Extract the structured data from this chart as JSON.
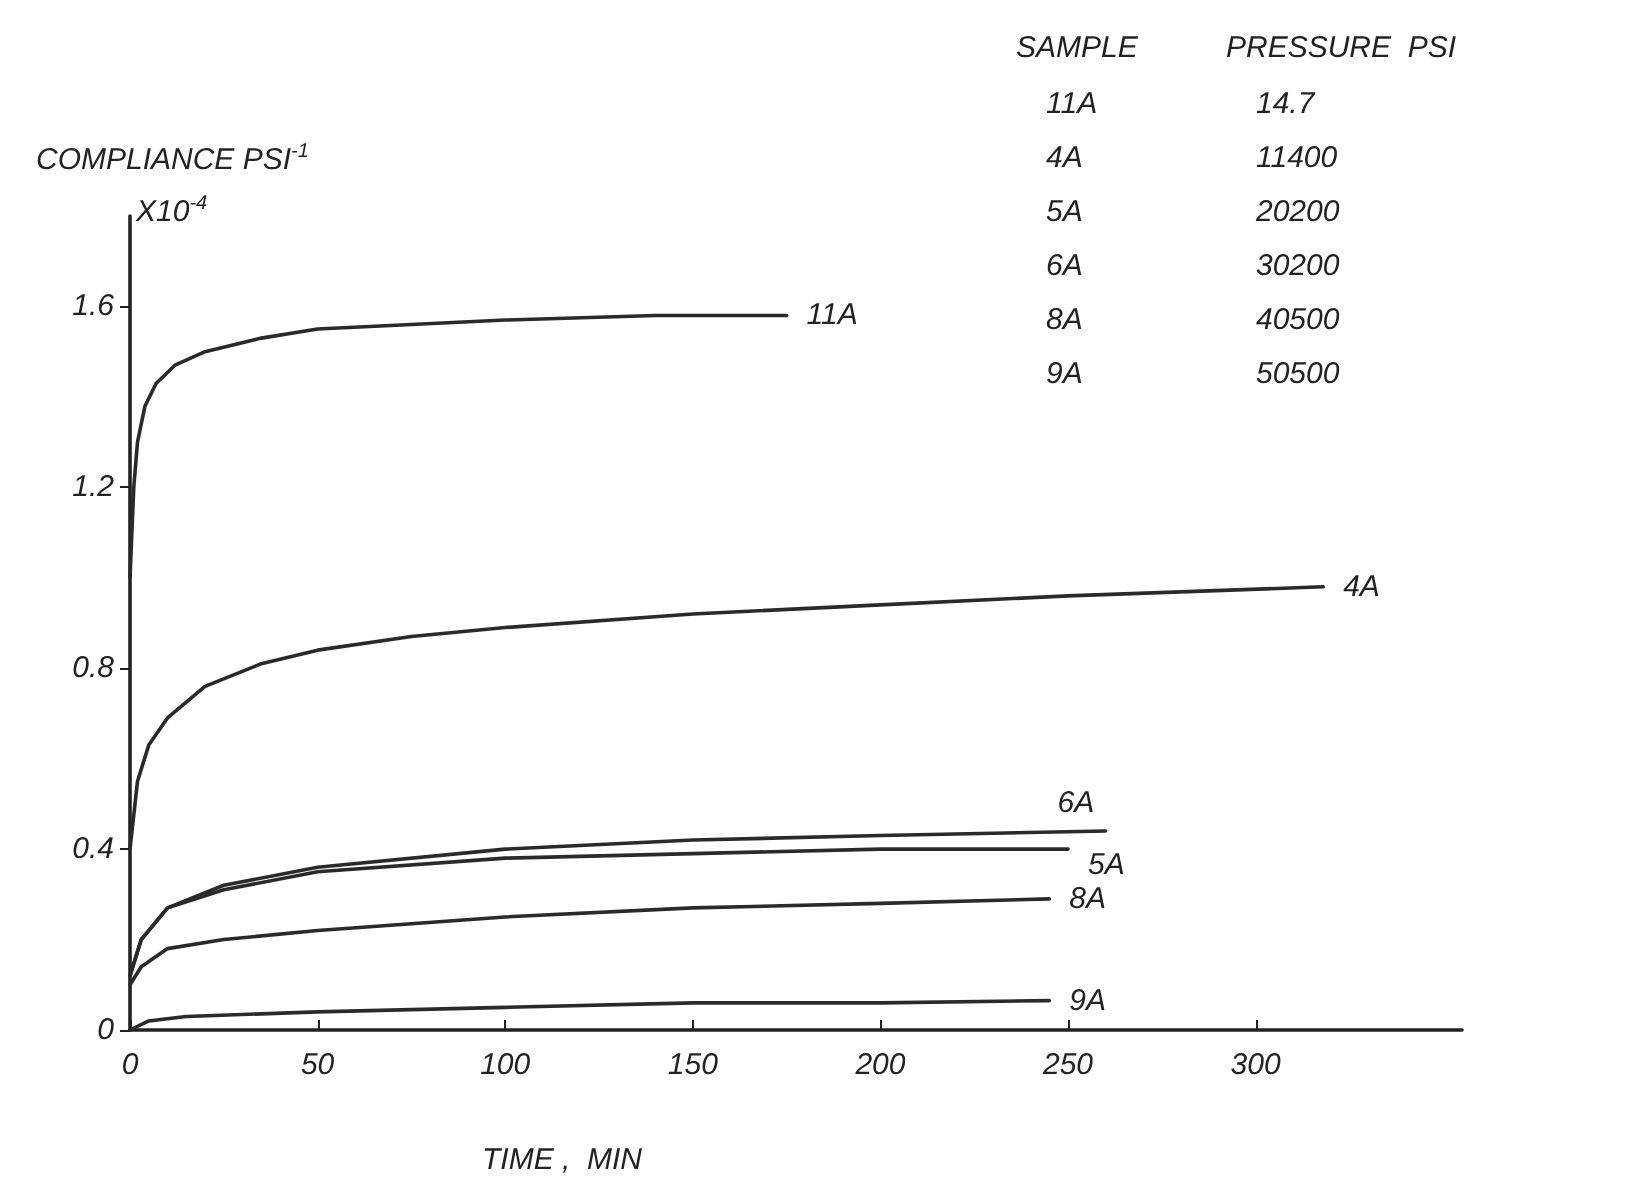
{
  "chart_data": {
    "type": "line",
    "ylabel": "COMPLIANCE PSI$^{-1}$",
    "xlabel": "TIME ,  MIN",
    "annotations": [
      "X10$^{-4}$",
      "SAMPLE",
      "PRESSURE  PSI",
      "11A",
      "14.7",
      "4A",
      "11400",
      "5A",
      "20200",
      "6A",
      "30200",
      "8A",
      "40500",
      "9A",
      "50500"
    ],
    "series": [
      {
        "name": "11A",
        "color": "#2a2a2a",
        "x": [
          0,
          1,
          2,
          4,
          7,
          12,
          20,
          35,
          50,
          75,
          100,
          140,
          175
        ],
        "values": [
          1.0,
          1.2,
          1.3,
          1.38,
          1.43,
          1.47,
          1.5,
          1.53,
          1.55,
          1.56,
          1.57,
          1.58,
          1.58
        ]
      },
      {
        "name": "4A",
        "color": "#2a2a2a",
        "x": [
          0,
          2,
          5,
          10,
          20,
          35,
          50,
          75,
          100,
          150,
          200,
          250,
          318
        ],
        "values": [
          0.4,
          0.55,
          0.63,
          0.69,
          0.76,
          0.81,
          0.84,
          0.87,
          0.89,
          0.92,
          0.94,
          0.96,
          0.98
        ]
      },
      {
        "name": "6A",
        "color": "#2a2a2a",
        "x": [
          0,
          3,
          10,
          25,
          50,
          100,
          150,
          200,
          260
        ],
        "values": [
          0.12,
          0.2,
          0.27,
          0.32,
          0.36,
          0.4,
          0.42,
          0.43,
          0.44
        ]
      },
      {
        "name": "5A",
        "color": "#2a2a2a",
        "x": [
          0,
          3,
          10,
          25,
          50,
          100,
          150,
          200,
          250
        ],
        "values": [
          0.12,
          0.2,
          0.27,
          0.31,
          0.35,
          0.38,
          0.39,
          0.4,
          0.4
        ]
      },
      {
        "name": "8A",
        "color": "#2a2a2a",
        "x": [
          0,
          3,
          10,
          25,
          50,
          100,
          150,
          200,
          245
        ],
        "values": [
          0.1,
          0.14,
          0.18,
          0.2,
          0.22,
          0.25,
          0.27,
          0.28,
          0.29
        ]
      },
      {
        "name": "9A",
        "color": "#2a2a2a",
        "x": [
          0,
          5,
          15,
          50,
          100,
          150,
          200,
          245
        ],
        "values": [
          0.0,
          0.02,
          0.03,
          0.04,
          0.05,
          0.06,
          0.06,
          0.065
        ]
      }
    ],
    "xlim": [
      0,
      355
    ],
    "xticks": [
      0,
      50,
      100,
      150,
      200,
      250,
      300
    ],
    "ylim": [
      0,
      1.8
    ],
    "yticks": [
      0,
      0.4,
      0.8,
      1.2,
      1.6
    ],
    "grid": false,
    "legend": false,
    "marker": "none",
    "line_style": "solid"
  }
}
